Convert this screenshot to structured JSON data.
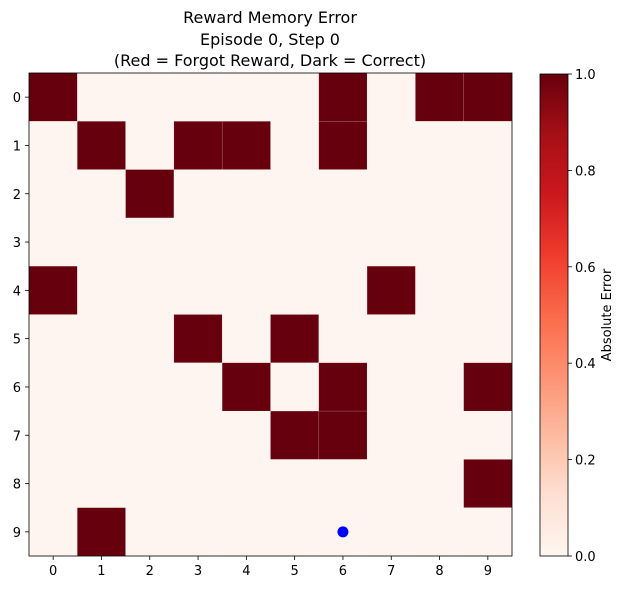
{
  "chart_data": {
    "type": "heatmap",
    "title_lines": [
      "Reward Memory Error",
      "Episode 0, Step 0",
      "(Red = Forgot Reward, Dark = Correct)"
    ],
    "x_ticks": [
      "0",
      "1",
      "2",
      "3",
      "4",
      "5",
      "6",
      "7",
      "8",
      "9"
    ],
    "y_ticks": [
      "0",
      "1",
      "2",
      "3",
      "4",
      "5",
      "6",
      "7",
      "8",
      "9"
    ],
    "grid": [
      [
        1,
        0,
        0,
        0,
        0,
        0,
        1,
        0,
        1,
        1
      ],
      [
        0,
        1,
        0,
        1,
        1,
        0,
        1,
        0,
        0,
        0
      ],
      [
        0,
        0,
        1,
        0,
        0,
        0,
        0,
        0,
        0,
        0
      ],
      [
        0,
        0,
        0,
        0,
        0,
        0,
        0,
        0,
        0,
        0
      ],
      [
        1,
        0,
        0,
        0,
        0,
        0,
        0,
        1,
        0,
        0
      ],
      [
        0,
        0,
        0,
        1,
        0,
        1,
        0,
        0,
        0,
        0
      ],
      [
        0,
        0,
        0,
        0,
        1,
        0,
        1,
        0,
        0,
        1
      ],
      [
        0,
        0,
        0,
        0,
        0,
        1,
        1,
        0,
        0,
        0
      ],
      [
        0,
        0,
        0,
        0,
        0,
        0,
        0,
        0,
        0,
        1
      ],
      [
        0,
        1,
        0,
        0,
        0,
        0,
        0,
        0,
        0,
        0
      ]
    ],
    "value_range": [
      0.0,
      1.0
    ],
    "colormap": "Reds",
    "color_low": "#fff5f0",
    "color_high": "#67000d",
    "agent_marker": {
      "x": 6,
      "y": 9,
      "color": "#0000ff"
    },
    "colorbar": {
      "label": "Absolute Error",
      "ticks": [
        "0.0",
        "0.2",
        "0.4",
        "0.6",
        "0.8",
        "1.0"
      ],
      "tick_values": [
        0.0,
        0.2,
        0.4,
        0.6,
        0.8,
        1.0
      ]
    }
  }
}
